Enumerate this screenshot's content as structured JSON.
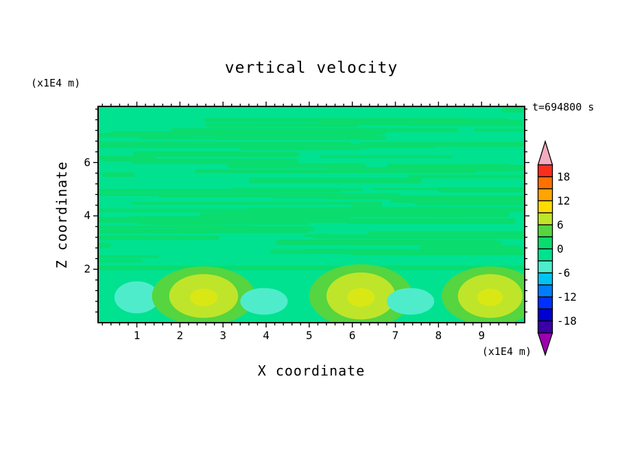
{
  "title": "vertical velocity",
  "timestamp": "t=694800 s",
  "axes": {
    "x_label": "X coordinate",
    "y_label": "Z coordinate",
    "x_unit": "(x1E4 m)",
    "y_unit": "(x1E4 m)",
    "x_ticks": [
      1,
      2,
      3,
      4,
      5,
      6,
      7,
      8,
      9
    ],
    "y_ticks": [
      2,
      4,
      6
    ],
    "x_range": [
      0.1,
      10.0
    ],
    "y_range": [
      0,
      8.1
    ]
  },
  "chart_data": {
    "type": "heatmap",
    "subtype": "filled-contour",
    "title": "vertical velocity",
    "xlabel": "X coordinate (x1E4 m)",
    "ylabel": "Z coordinate (x1E4 m)",
    "time_label": "t=694800 s",
    "x_range": [
      0.1,
      10.0
    ],
    "y_range": [
      0,
      8.1
    ],
    "x_ticks": [
      1,
      2,
      3,
      4,
      5,
      6,
      7,
      8,
      9
    ],
    "y_ticks": [
      2,
      4,
      6
    ],
    "contour_interval": 3,
    "levels": [
      -21,
      -18,
      -15,
      -12,
      -9,
      -6,
      -3,
      0,
      3,
      6,
      9,
      12,
      15,
      18,
      21
    ],
    "colorbar_labels": [
      18,
      12,
      6,
      0,
      -6,
      -12,
      -18
    ],
    "palette_top_to_bottom": [
      "#FB2E1E",
      "#FD7100",
      "#FFA400",
      "#FFDC00",
      "#BEE52A",
      "#55D53F",
      "#0ADC6E",
      "#00E290",
      "#4FECCC",
      "#00C3F2",
      "#007DFB",
      "#0030FF",
      "#0000CE",
      "#3A00A6"
    ],
    "arrow_top_color": "#F3ABBE",
    "arrow_bottom_color": "#9C00AE",
    "field_description": "Near-zero horizontal streaky bands (values between -3 and +3) fill the region above z=2; a row of alternating convection cells sits below z=2",
    "cells": [
      {
        "kind": "downdraft",
        "x": 1.0,
        "z": 0.95,
        "rx": 0.52,
        "rz": 0.6,
        "peak_band": "-6 to -3"
      },
      {
        "kind": "updraft",
        "x": 2.55,
        "z": 1.0,
        "rx": 0.8,
        "rz": 0.82,
        "peak_band": "6 to 9"
      },
      {
        "kind": "downdraft",
        "x": 3.95,
        "z": 0.8,
        "rx": 0.55,
        "rz": 0.5,
        "peak_band": "-6 to -3"
      },
      {
        "kind": "updraft",
        "x": 6.2,
        "z": 1.0,
        "rx": 0.8,
        "rz": 0.88,
        "peak_band": "6 to 9"
      },
      {
        "kind": "downdraft",
        "x": 7.35,
        "z": 0.8,
        "rx": 0.55,
        "rz": 0.5,
        "peak_band": "-6 to -3"
      },
      {
        "kind": "updraft",
        "x": 9.2,
        "z": 1.0,
        "rx": 0.75,
        "rz": 0.82,
        "peak_band": "6 to 9"
      }
    ]
  },
  "plot": {
    "background": "#00E290",
    "frame_color": "#000000",
    "texture": {
      "seed": 7,
      "streak_count": 85,
      "streak_color": "#0ADC6E",
      "region_z": [
        2.2,
        8.02
      ],
      "band_z": 2.05
    },
    "cell_colors": {
      "updraft_fill": "#BEE52A",
      "updraft_halo": "#55D53F",
      "updraft_core": "#D9E814",
      "downdraft_fill": "#4FECCC"
    }
  }
}
